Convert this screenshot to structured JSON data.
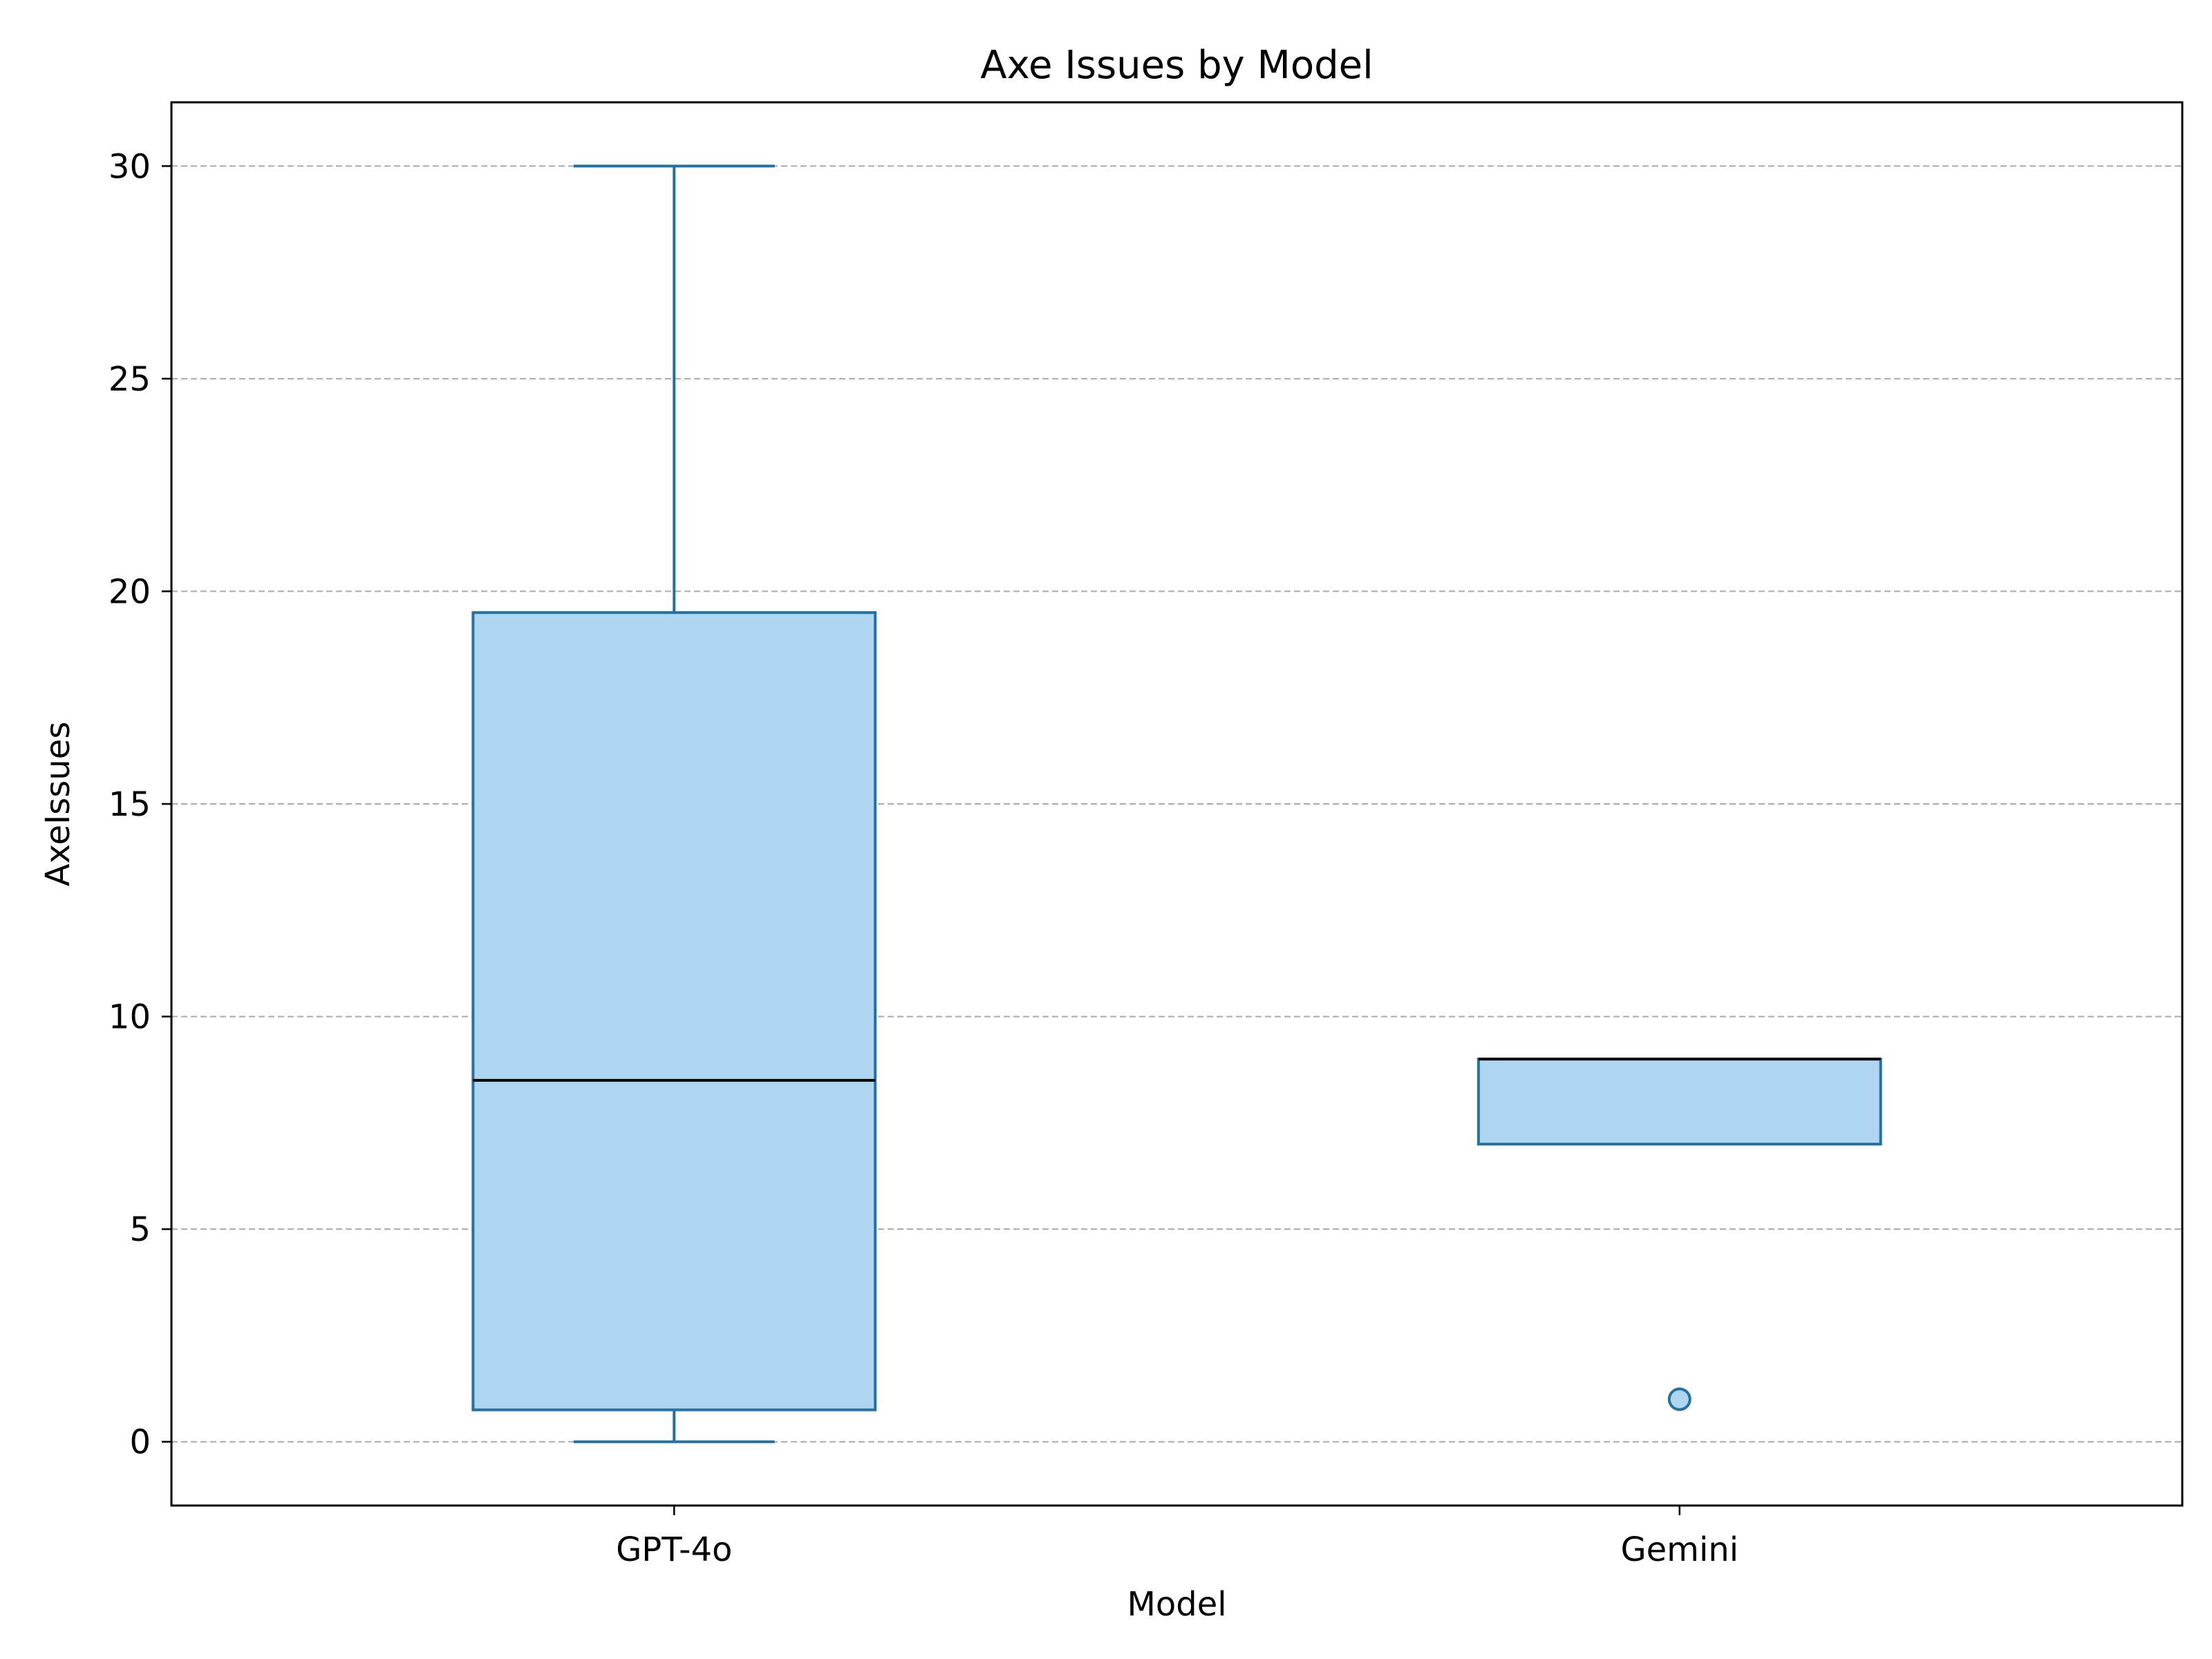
{
  "chart_data": {
    "type": "box",
    "title": "Axe Issues by Model",
    "xlabel": "Model",
    "ylabel": "AxeIssues",
    "categories": [
      "GPT-4o",
      "Gemini"
    ],
    "boxes": [
      {
        "category": "GPT-4o",
        "whisker_low": 0,
        "q1": 0.75,
        "median": 8.5,
        "q3": 19.5,
        "whisker_high": 30,
        "outliers": []
      },
      {
        "category": "Gemini",
        "whisker_low": 7,
        "q1": 7,
        "median": 9,
        "q3": 9,
        "whisker_high": 9,
        "outliers": [
          1
        ]
      }
    ],
    "ylim": [
      -1.5,
      31.5
    ],
    "yticks": [
      0,
      5,
      10,
      15,
      20,
      25,
      30
    ],
    "grid": true,
    "grid_axis": "y",
    "grid_style": "dashed",
    "legend": false,
    "colors": {
      "box_fill": "#aed6f1",
      "box_edge": "#2471a3",
      "median": "#000000",
      "grid": "#aaaaaa",
      "axes": "#000000"
    }
  }
}
